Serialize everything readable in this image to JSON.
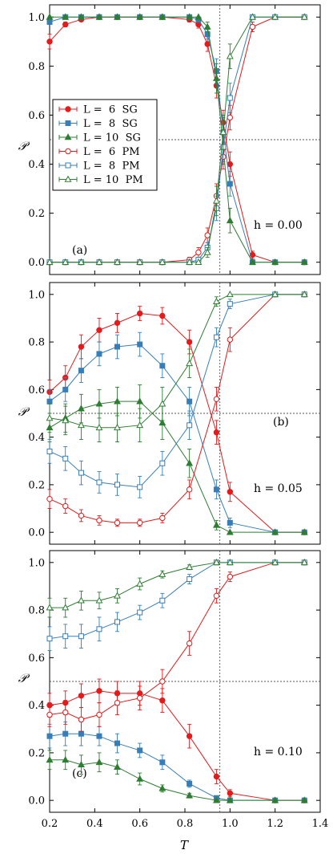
{
  "figure": {
    "shared_xlabel": "T",
    "xticks": [
      "0.2",
      "0.4",
      "0.6",
      "0.8",
      "1.0",
      "1.2",
      "1.4"
    ]
  },
  "series_styles": [
    {
      "key": "L6SG",
      "label": "L =  6  SG",
      "color": "#e41a1c",
      "marker": "circle",
      "filled": true
    },
    {
      "key": "L8SG",
      "label": "L =  8  SG",
      "color": "#377eb8",
      "marker": "square",
      "filled": true
    },
    {
      "key": "L10SG",
      "label": "L = 10  SG",
      "color": "#2e7d32",
      "marker": "triangle",
      "filled": true
    },
    {
      "key": "L6PM",
      "label": "L =  6  PM",
      "color": "#e41a1c",
      "marker": "circle",
      "filled": false
    },
    {
      "key": "L8PM",
      "label": "L =  8  PM",
      "color": "#377eb8",
      "marker": "square",
      "filled": false
    },
    {
      "key": "L10PM",
      "label": "L = 10  PM",
      "color": "#2e7d32",
      "marker": "triangle",
      "filled": false
    }
  ],
  "chart_data": [
    {
      "type": "line",
      "panel_label": "(a)",
      "field_label": "h = 0.00",
      "ylabel": "𝒫",
      "xlabel": "",
      "xlim": [
        0.2,
        1.4
      ],
      "ylim": [
        -0.05,
        1.05
      ],
      "yticks": [
        "0.0",
        "0.2",
        "0.4",
        "0.6",
        "0.8",
        "1.0"
      ],
      "vline_x": 0.955,
      "hline_y": 0.5,
      "legend": "center-left",
      "series": [
        {
          "name": "L =  6  SG",
          "x": [
            0.2,
            0.27,
            0.34,
            0.42,
            0.5,
            0.6,
            0.7,
            0.82,
            0.86,
            0.9,
            0.94,
            0.97,
            1.0,
            1.1,
            1.2,
            1.33
          ],
          "y": [
            0.9,
            0.97,
            0.99,
            1.0,
            1.0,
            1.0,
            1.0,
            0.99,
            0.97,
            0.89,
            0.72,
            0.57,
            0.4,
            0.03,
            0.0,
            0.0
          ],
          "err": [
            0.03,
            0.01,
            0.005,
            0.0,
            0.0,
            0.0,
            0.0,
            0.01,
            0.015,
            0.03,
            0.05,
            0.05,
            0.05,
            0.015,
            0.0,
            0.0
          ]
        },
        {
          "name": "L =  8  SG",
          "x": [
            0.2,
            0.27,
            0.34,
            0.42,
            0.5,
            0.6,
            0.7,
            0.82,
            0.86,
            0.9,
            0.94,
            0.97,
            1.0,
            1.1,
            1.2,
            1.33
          ],
          "y": [
            0.98,
            1.0,
            1.0,
            1.0,
            1.0,
            1.0,
            1.0,
            1.0,
            0.99,
            0.93,
            0.78,
            0.53,
            0.32,
            0.0,
            0.0,
            0.0
          ],
          "err": [
            0.01,
            0.0,
            0.0,
            0.0,
            0.0,
            0.0,
            0.0,
            0.0,
            0.01,
            0.02,
            0.05,
            0.06,
            0.05,
            0.0,
            0.0,
            0.0
          ]
        },
        {
          "name": "L = 10  SG",
          "x": [
            0.2,
            0.27,
            0.34,
            0.42,
            0.5,
            0.6,
            0.7,
            0.82,
            0.86,
            0.9,
            0.94,
            0.97,
            1.0,
            1.1,
            1.2,
            1.33
          ],
          "y": [
            1.0,
            1.0,
            1.0,
            1.0,
            1.0,
            1.0,
            1.0,
            1.0,
            1.0,
            0.96,
            0.75,
            0.47,
            0.17,
            0.0,
            0.0,
            0.0
          ],
          "err": [
            0.0,
            0.0,
            0.0,
            0.0,
            0.0,
            0.0,
            0.0,
            0.0,
            0.0,
            0.02,
            0.06,
            0.07,
            0.05,
            0.0,
            0.0,
            0.0
          ]
        },
        {
          "name": "L =  6  PM",
          "x": [
            0.2,
            0.27,
            0.34,
            0.42,
            0.5,
            0.6,
            0.7,
            0.82,
            0.86,
            0.9,
            0.94,
            0.97,
            1.0,
            1.1,
            1.2,
            1.33
          ],
          "y": [
            0.0,
            0.0,
            0.0,
            0.0,
            0.0,
            0.0,
            0.0,
            0.01,
            0.04,
            0.11,
            0.27,
            0.43,
            0.59,
            0.96,
            1.0,
            1.0
          ],
          "err": [
            0.0,
            0.0,
            0.0,
            0.0,
            0.0,
            0.0,
            0.0,
            0.01,
            0.02,
            0.03,
            0.05,
            0.05,
            0.05,
            0.02,
            0.005,
            0.0
          ]
        },
        {
          "name": "L =  8  PM",
          "x": [
            0.2,
            0.27,
            0.34,
            0.42,
            0.5,
            0.6,
            0.7,
            0.82,
            0.86,
            0.9,
            0.94,
            0.97,
            1.0,
            1.1,
            1.2,
            1.33
          ],
          "y": [
            0.0,
            0.0,
            0.0,
            0.0,
            0.0,
            0.0,
            0.0,
            0.0,
            0.01,
            0.06,
            0.22,
            0.47,
            0.67,
            1.0,
            1.0,
            1.0
          ],
          "err": [
            0.0,
            0.0,
            0.0,
            0.0,
            0.0,
            0.0,
            0.0,
            0.0,
            0.01,
            0.02,
            0.05,
            0.06,
            0.06,
            0.0,
            0.0,
            0.0
          ]
        },
        {
          "name": "L = 10  PM",
          "x": [
            0.2,
            0.27,
            0.34,
            0.42,
            0.5,
            0.6,
            0.7,
            0.82,
            0.86,
            0.9,
            0.94,
            0.97,
            1.0,
            1.1,
            1.2,
            1.33
          ],
          "y": [
            0.0,
            0.0,
            0.0,
            0.0,
            0.0,
            0.0,
            0.0,
            0.0,
            0.0,
            0.04,
            0.25,
            0.53,
            0.84,
            1.0,
            1.0,
            1.0
          ],
          "err": [
            0.0,
            0.0,
            0.0,
            0.0,
            0.0,
            0.0,
            0.0,
            0.0,
            0.0,
            0.02,
            0.06,
            0.07,
            0.05,
            0.0,
            0.0,
            0.0
          ]
        }
      ]
    },
    {
      "type": "line",
      "panel_label": "(b)",
      "field_label": "h = 0.05",
      "ylabel": "𝒫",
      "xlabel": "",
      "xlim": [
        0.2,
        1.4
      ],
      "ylim": [
        -0.05,
        1.05
      ],
      "yticks": [
        "0.0",
        "0.2",
        "0.4",
        "0.6",
        "0.8",
        "1.0"
      ],
      "vline_x": 0.955,
      "hline_y": 0.5,
      "series": [
        {
          "name": "L =  6  SG",
          "x": [
            0.2,
            0.27,
            0.34,
            0.42,
            0.5,
            0.6,
            0.7,
            0.82,
            0.94,
            1.0,
            1.2,
            1.33
          ],
          "y": [
            0.59,
            0.65,
            0.78,
            0.85,
            0.88,
            0.92,
            0.91,
            0.8,
            0.42,
            0.17,
            0.0,
            0.0
          ],
          "err": [
            0.05,
            0.05,
            0.05,
            0.05,
            0.04,
            0.03,
            0.035,
            0.05,
            0.05,
            0.04,
            0.0,
            0.0
          ]
        },
        {
          "name": "L =  8  SG",
          "x": [
            0.2,
            0.27,
            0.34,
            0.42,
            0.5,
            0.6,
            0.7,
            0.82,
            0.94,
            1.0,
            1.2,
            1.33
          ],
          "y": [
            0.55,
            0.6,
            0.68,
            0.75,
            0.78,
            0.79,
            0.7,
            0.55,
            0.18,
            0.04,
            0.0,
            0.0
          ],
          "err": [
            0.05,
            0.05,
            0.05,
            0.05,
            0.05,
            0.05,
            0.05,
            0.06,
            0.04,
            0.02,
            0.0,
            0.0
          ]
        },
        {
          "name": "L = 10  SG",
          "x": [
            0.2,
            0.27,
            0.34,
            0.42,
            0.5,
            0.6,
            0.7,
            0.82,
            0.94,
            1.0,
            1.2,
            1.33
          ],
          "y": [
            0.44,
            0.48,
            0.52,
            0.54,
            0.55,
            0.55,
            0.46,
            0.29,
            0.03,
            0.0,
            0.0,
            0.0
          ],
          "err": [
            0.06,
            0.06,
            0.06,
            0.06,
            0.06,
            0.07,
            0.07,
            0.06,
            0.02,
            0.0,
            0.0,
            0.0
          ]
        },
        {
          "name": "L =  6  PM",
          "x": [
            0.2,
            0.27,
            0.34,
            0.42,
            0.5,
            0.6,
            0.7,
            0.82,
            0.94,
            1.0,
            1.2,
            1.33
          ],
          "y": [
            0.14,
            0.11,
            0.07,
            0.05,
            0.04,
            0.04,
            0.06,
            0.18,
            0.56,
            0.81,
            1.0,
            1.0
          ],
          "err": [
            0.04,
            0.03,
            0.025,
            0.02,
            0.015,
            0.015,
            0.02,
            0.04,
            0.05,
            0.05,
            0.0,
            0.0
          ]
        },
        {
          "name": "L =  8  PM",
          "x": [
            0.2,
            0.27,
            0.34,
            0.42,
            0.5,
            0.6,
            0.7,
            0.82,
            0.94,
            1.0,
            1.2,
            1.33
          ],
          "y": [
            0.34,
            0.31,
            0.25,
            0.21,
            0.2,
            0.19,
            0.29,
            0.45,
            0.82,
            0.96,
            1.0,
            1.0
          ],
          "err": [
            0.05,
            0.05,
            0.05,
            0.045,
            0.045,
            0.045,
            0.05,
            0.06,
            0.04,
            0.02,
            0.0,
            0.0
          ]
        },
        {
          "name": "L = 10  PM",
          "x": [
            0.2,
            0.27,
            0.34,
            0.42,
            0.5,
            0.6,
            0.7,
            0.82,
            0.94,
            1.0,
            1.2,
            1.33
          ],
          "y": [
            0.48,
            0.47,
            0.45,
            0.44,
            0.44,
            0.45,
            0.54,
            0.71,
            0.97,
            1.0,
            1.0,
            1.0
          ],
          "err": [
            0.06,
            0.06,
            0.06,
            0.06,
            0.06,
            0.07,
            0.07,
            0.06,
            0.02,
            0.0,
            0.0,
            0.0
          ]
        }
      ]
    },
    {
      "type": "line",
      "panel_label": "(c)",
      "field_label": "h = 0.10",
      "ylabel": "𝒫",
      "xlabel": "T",
      "xlim": [
        0.2,
        1.4
      ],
      "ylim": [
        -0.05,
        1.05
      ],
      "yticks": [
        "0.0",
        "0.2",
        "0.4",
        "0.6",
        "0.8",
        "1.0"
      ],
      "vline_x": 0.955,
      "hline_y": 0.5,
      "series": [
        {
          "name": "L =  6  SG",
          "x": [
            0.2,
            0.27,
            0.34,
            0.42,
            0.5,
            0.6,
            0.7,
            0.82,
            0.94,
            1.0,
            1.2,
            1.33
          ],
          "y": [
            0.4,
            0.41,
            0.44,
            0.46,
            0.45,
            0.45,
            0.42,
            0.27,
            0.1,
            0.03,
            0.0,
            0.0
          ],
          "err": [
            0.05,
            0.05,
            0.05,
            0.05,
            0.05,
            0.05,
            0.05,
            0.05,
            0.03,
            0.015,
            0.0,
            0.0
          ]
        },
        {
          "name": "L =  8  SG",
          "x": [
            0.2,
            0.27,
            0.34,
            0.42,
            0.5,
            0.6,
            0.7,
            0.82,
            0.94,
            1.0,
            1.2,
            1.33
          ],
          "y": [
            0.27,
            0.28,
            0.28,
            0.27,
            0.24,
            0.21,
            0.16,
            0.07,
            0.01,
            0.0,
            0.0,
            0.0
          ],
          "err": [
            0.05,
            0.05,
            0.05,
            0.04,
            0.04,
            0.03,
            0.03,
            0.015,
            0.005,
            0.0,
            0.0,
            0.0
          ]
        },
        {
          "name": "L = 10  SG",
          "x": [
            0.2,
            0.27,
            0.34,
            0.42,
            0.5,
            0.6,
            0.7,
            0.82,
            0.94,
            1.0,
            1.2,
            1.33
          ],
          "y": [
            0.17,
            0.17,
            0.15,
            0.16,
            0.14,
            0.09,
            0.05,
            0.02,
            0.0,
            0.0,
            0.0,
            0.0
          ],
          "err": [
            0.04,
            0.04,
            0.04,
            0.04,
            0.03,
            0.025,
            0.015,
            0.01,
            0.0,
            0.0,
            0.0,
            0.0
          ]
        },
        {
          "name": "L =  6  PM",
          "x": [
            0.2,
            0.27,
            0.34,
            0.42,
            0.5,
            0.6,
            0.7,
            0.82,
            0.94,
            1.0,
            1.2,
            1.33
          ],
          "y": [
            0.36,
            0.37,
            0.34,
            0.36,
            0.41,
            0.43,
            0.5,
            0.66,
            0.86,
            0.94,
            1.0,
            1.0
          ],
          "err": [
            0.05,
            0.05,
            0.05,
            0.05,
            0.05,
            0.05,
            0.05,
            0.05,
            0.03,
            0.02,
            0.005,
            0.0
          ]
        },
        {
          "name": "L =  8  PM",
          "x": [
            0.2,
            0.27,
            0.34,
            0.42,
            0.5,
            0.6,
            0.7,
            0.82,
            0.94,
            1.0,
            1.2,
            1.33
          ],
          "y": [
            0.68,
            0.69,
            0.69,
            0.72,
            0.75,
            0.79,
            0.84,
            0.93,
            1.0,
            1.0,
            1.0,
            1.0
          ],
          "err": [
            0.05,
            0.05,
            0.05,
            0.05,
            0.04,
            0.03,
            0.03,
            0.02,
            0.005,
            0.0,
            0.0,
            0.0
          ]
        },
        {
          "name": "L = 10  PM",
          "x": [
            0.2,
            0.27,
            0.34,
            0.42,
            0.5,
            0.6,
            0.7,
            0.82,
            0.94,
            1.0,
            1.2,
            1.33
          ],
          "y": [
            0.81,
            0.81,
            0.84,
            0.84,
            0.86,
            0.91,
            0.95,
            0.98,
            1.0,
            1.0,
            1.0,
            1.0
          ],
          "err": [
            0.04,
            0.04,
            0.04,
            0.035,
            0.03,
            0.025,
            0.015,
            0.01,
            0.0,
            0.0,
            0.0,
            0.0
          ]
        }
      ]
    }
  ]
}
